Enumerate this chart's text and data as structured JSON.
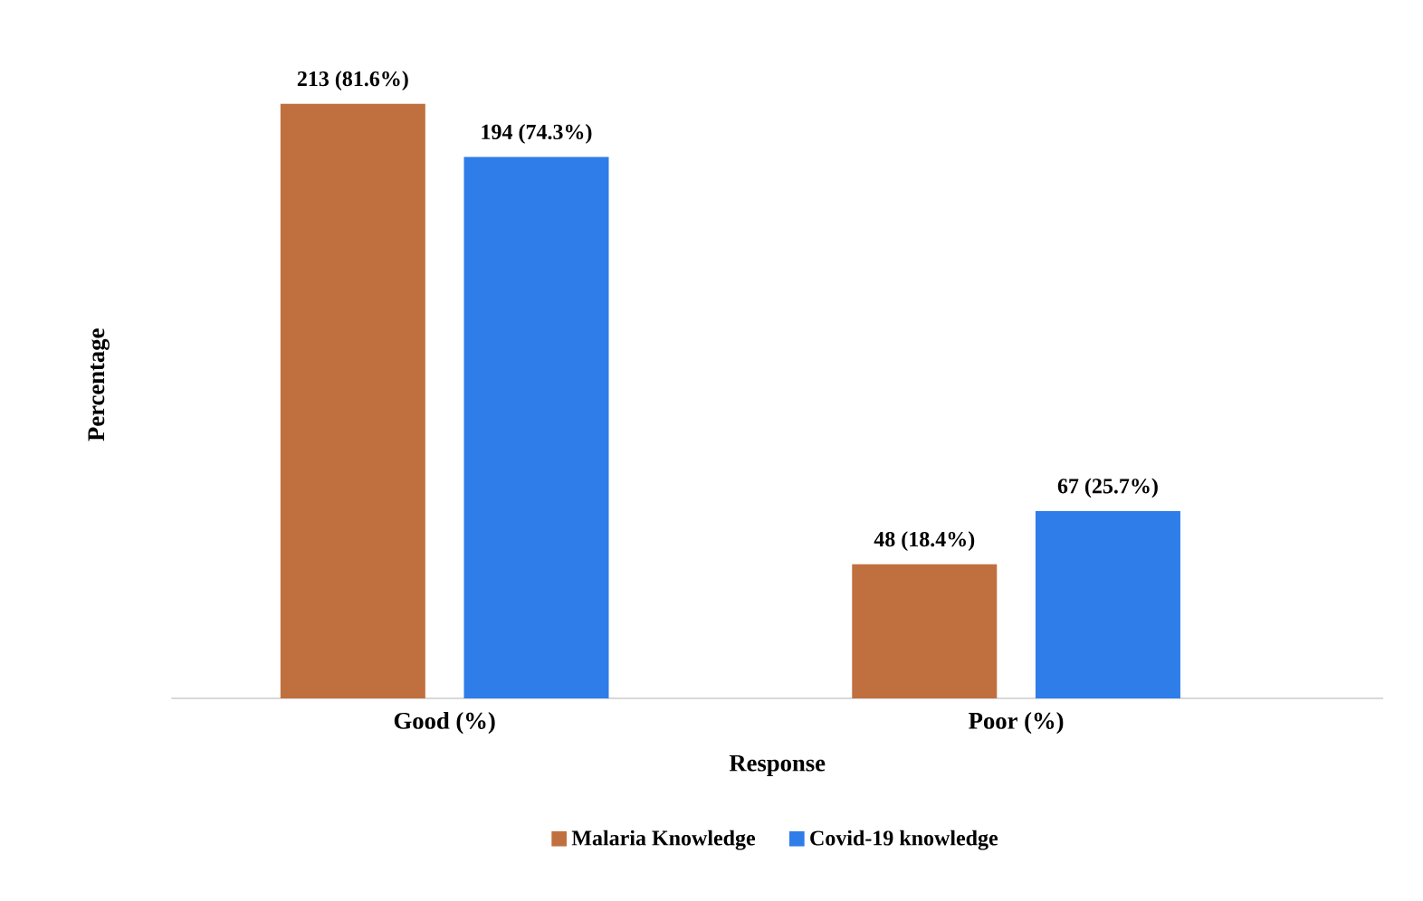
{
  "chart_data": {
    "type": "bar",
    "xlabel": "Response",
    "ylabel": "Percentage",
    "categories": [
      "Good (%)",
      "Poor (%)"
    ],
    "series": [
      {
        "name": "Malaria Knowledge",
        "color": "#c0703f",
        "values": [
          81.6,
          18.4
        ],
        "value_labels": [
          "213 (81.6%)",
          "48 (18.4%)"
        ]
      },
      {
        "name": "Covid-19 knowledge",
        "color": "#2e7de9",
        "values": [
          74.3,
          25.7
        ],
        "value_labels": [
          "194 (74.3%)",
          "67 (25.7%)"
        ]
      }
    ],
    "legend": "bottom"
  }
}
